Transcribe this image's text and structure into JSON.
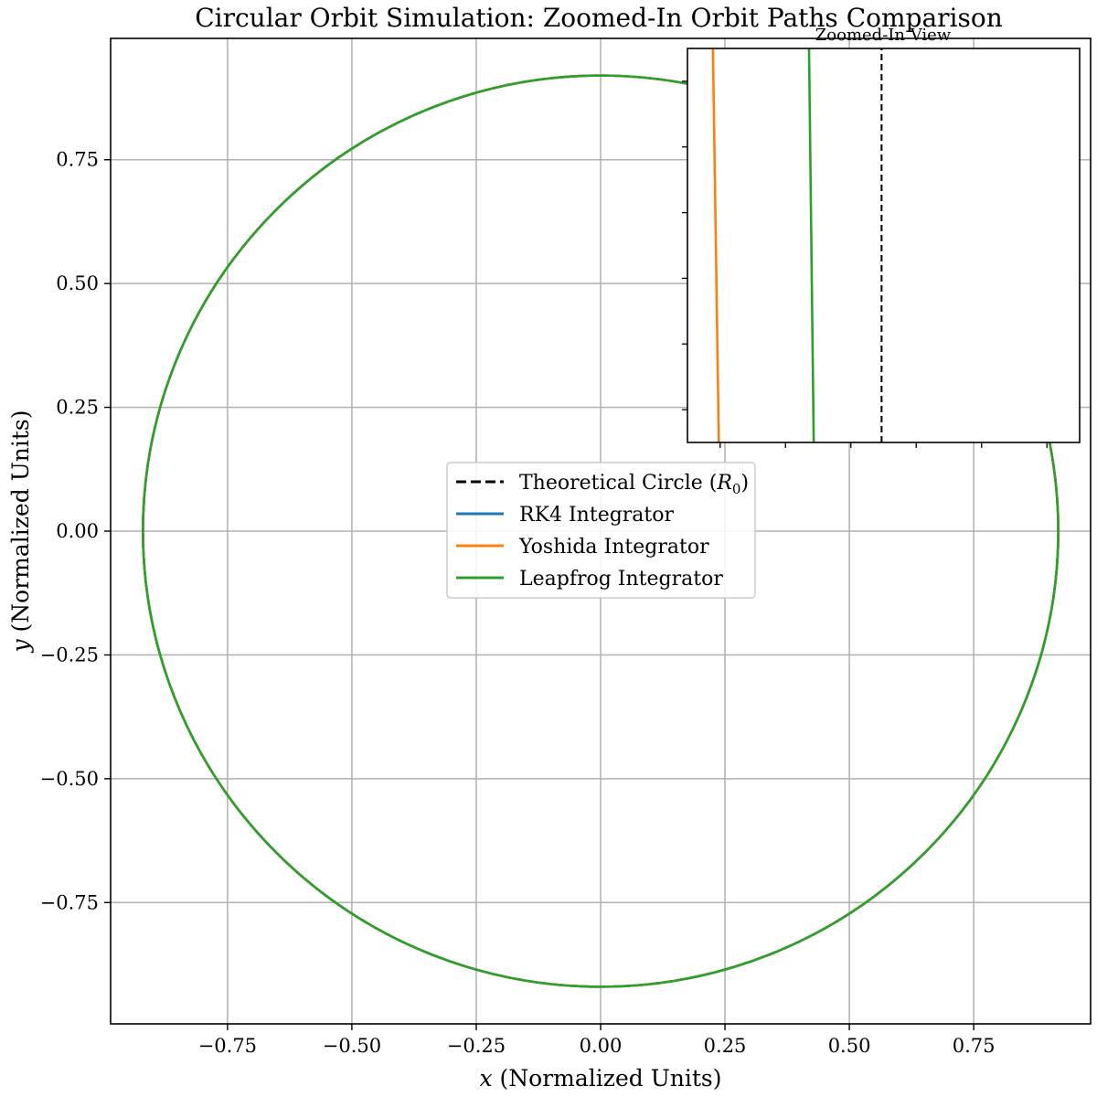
{
  "chart_data": [
    {
      "type": "line",
      "title": "Circular Orbit Simulation: Zoomed-In Orbit Paths Comparison",
      "xlabel": "x (Normalized Units)",
      "ylabel": "y (Normalized Units)",
      "xlim": [
        -0.985,
        0.985
      ],
      "ylim": [
        -0.995,
        0.995
      ],
      "xticks": [
        -0.75,
        -0.5,
        -0.25,
        0.0,
        0.25,
        0.5,
        0.75
      ],
      "yticks": [
        -0.75,
        -0.5,
        -0.25,
        0.0,
        0.25,
        0.5,
        0.75
      ],
      "xtick_labels": [
        "−0.75",
        "−0.50",
        "−0.25",
        "0.00",
        "0.25",
        "0.50",
        "0.75"
      ],
      "ytick_labels": [
        "−0.75",
        "−0.50",
        "−0.25",
        "0.00",
        "0.25",
        "0.50",
        "0.75"
      ],
      "grid": true,
      "legend": "center",
      "series": [
        {
          "name": "Theoretical Circle (R₀)",
          "radius": 0.92,
          "color": "#000000",
          "style": "dashed"
        },
        {
          "name": "RK4 Integrator",
          "radius": 0.92,
          "color": "#1f77b4",
          "style": "solid"
        },
        {
          "name": "Yoshida Integrator",
          "radius": 0.92,
          "color": "#ff7f0e",
          "style": "solid"
        },
        {
          "name": "Leapfrog Integrator",
          "radius": 0.92,
          "color": "#2ca02c",
          "style": "solid"
        }
      ]
    },
    {
      "type": "line",
      "title": "Zoomed-In View",
      "legend": "none",
      "series": [
        {
          "name": "Theoretical Circle (R₀)",
          "x_rel": [
            0.495,
            0.495
          ],
          "y_rel": [
            0,
            1
          ],
          "color": "#000000",
          "style": "dashed"
        },
        {
          "name": "Yoshida Integrator",
          "x_rel": [
            0.065,
            0.08
          ],
          "y_rel": [
            1,
            0
          ],
          "color": "#ff7f0e",
          "style": "solid"
        },
        {
          "name": "Leapfrog Integrator",
          "x_rel": [
            0.31,
            0.322
          ],
          "y_rel": [
            1,
            0
          ],
          "color": "#2ca02c",
          "style": "solid"
        }
      ],
      "xminor_ticks": 6,
      "yminor_ticks": 6
    }
  ],
  "legend_labels": {
    "theoretical_prefix": "Theoretical Circle (",
    "theoretical_symbol": "R",
    "theoretical_subscript": "0",
    "theoretical_suffix": ")",
    "rk4": "RK4 Integrator",
    "yoshida": "Yoshida Integrator",
    "leapfrog": "Leapfrog Integrator"
  },
  "axis_labels": {
    "x_var": "x",
    "x_rest": " (Normalized Units)",
    "y_var": "y",
    "y_rest": " (Normalized Units)"
  },
  "colors": {
    "rk4": "#1f77b4",
    "yoshida": "#ff7f0e",
    "leapfrog": "#2ca02c",
    "theoretical": "#000000",
    "grid": "#b0b0b0"
  }
}
